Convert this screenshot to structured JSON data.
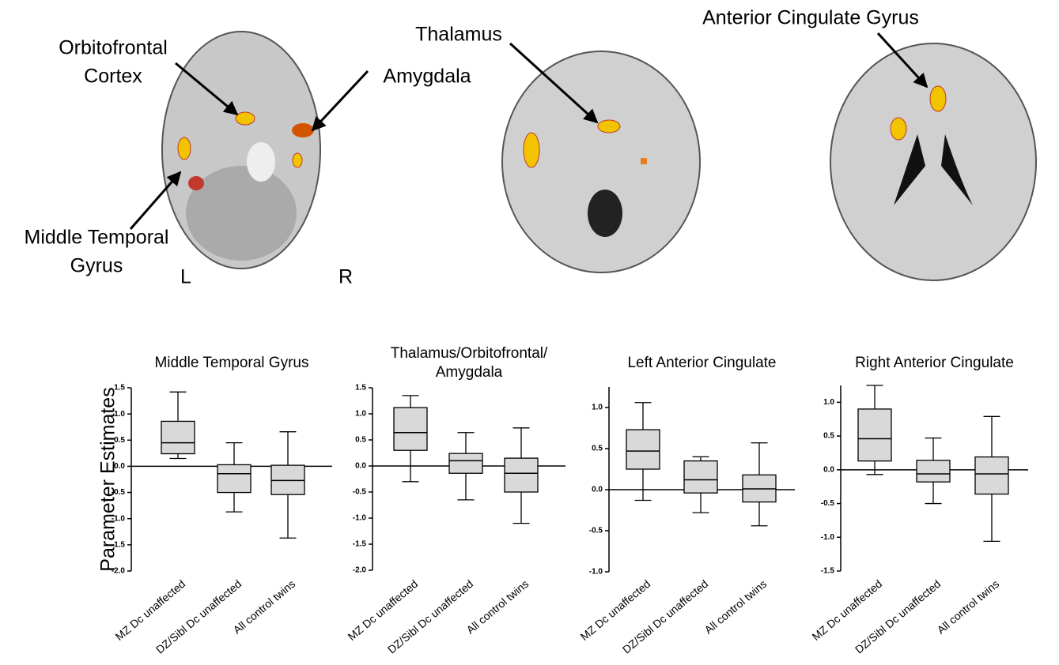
{
  "images": [
    {
      "labels": [
        "Orbitofrontal",
        "Cortex",
        "Amygdala",
        "Middle Temporal",
        "Gyrus",
        "L",
        "R"
      ]
    },
    {
      "labels": [
        "Thalamus"
      ]
    },
    {
      "labels": [
        "Anterior Cingulate Gyrus"
      ]
    }
  ],
  "chart_data": [
    {
      "type": "box",
      "title": [
        "Middle Temporal Gyrus"
      ],
      "ylabel": "Parameter Estimates",
      "categories": [
        "MZ Dc unaffected",
        "DZ/Sibl Dc unaffected",
        "All control twins"
      ],
      "boxes": [
        {
          "min": 0.15,
          "q1": 0.24,
          "median": 0.45,
          "q3": 0.86,
          "max": 1.42
        },
        {
          "min": -0.87,
          "q1": -0.5,
          "median": -0.14,
          "q3": 0.03,
          "max": 0.45
        },
        {
          "min": -1.37,
          "q1": -0.54,
          "median": -0.27,
          "q3": 0.02,
          "max": 0.66
        }
      ],
      "color": "#d9d9d9",
      "ylim": [
        -2,
        1.5
      ],
      "yticks": [
        1.5,
        {
          "value": 1,
          "label": "1.0"
        },
        0.5,
        {
          "value": 0,
          "label": "0.0"
        },
        -0.5,
        {
          "value": -1,
          "label": "-1.0"
        },
        -1.5,
        {
          "value": -2,
          "label": "-2.0"
        }
      ]
    },
    {
      "type": "box",
      "title": [
        "Thalamus/Orbitofrontal/",
        "Amygdala"
      ],
      "categories": [
        "MZ Dc unaffected",
        "DZ/Sibl Dc unaffected",
        "All control twins"
      ],
      "boxes": [
        {
          "min": -0.3,
          "q1": 0.3,
          "median": 0.64,
          "q3": 1.12,
          "max": 1.35
        },
        {
          "min": -0.65,
          "q1": -0.14,
          "median": 0.1,
          "q3": 0.24,
          "max": 0.64
        },
        {
          "min": -1.1,
          "q1": -0.5,
          "median": -0.14,
          "q3": 0.15,
          "max": 0.73
        }
      ],
      "color": "#d9d9d9",
      "ylim": [
        -2,
        1.5
      ],
      "yticks": [
        1.5,
        {
          "value": 1,
          "label": "1.0"
        },
        0.5,
        {
          "value": 0,
          "label": "0.0"
        },
        -0.5,
        {
          "value": -1,
          "label": "-1.0"
        },
        -1.5,
        {
          "value": -2,
          "label": "-2.0"
        }
      ]
    },
    {
      "type": "box",
      "title": [
        "Left Anterior Cingulate"
      ],
      "categories": [
        "MZ Dc unaffected",
        "DZ/Sibl Dc unaffected",
        "All control twins"
      ],
      "boxes": [
        {
          "min": -0.13,
          "q1": 0.25,
          "median": 0.47,
          "q3": 0.73,
          "max": 1.06
        },
        {
          "min": -0.28,
          "q1": -0.04,
          "median": 0.12,
          "q3": 0.35,
          "max": 0.4
        },
        {
          "min": -0.44,
          "q1": -0.15,
          "median": 0.01,
          "q3": 0.18,
          "max": 0.57
        }
      ],
      "color": "#d9d9d9",
      "ylim": [
        -1,
        1.25
      ],
      "yticks": [
        {
          "value": 1,
          "label": "1.0"
        },
        0.5,
        {
          "value": 0,
          "label": "0.0"
        },
        -0.5,
        {
          "value": -1,
          "label": "-1.0"
        }
      ]
    },
    {
      "type": "box",
      "title": [
        "Right Anterior Cingulate"
      ],
      "categories": [
        "MZ Dc unaffected",
        "DZ/Sibl Dc unaffected",
        "All control twins"
      ],
      "boxes": [
        {
          "min": -0.07,
          "q1": 0.13,
          "median": 0.46,
          "q3": 0.9,
          "max": 1.25
        },
        {
          "min": -0.5,
          "q1": -0.18,
          "median": -0.06,
          "q3": 0.14,
          "max": 0.47
        },
        {
          "min": -1.06,
          "q1": -0.36,
          "median": -0.06,
          "q3": 0.19,
          "max": 0.79
        }
      ],
      "color": "#d9d9d9",
      "ylim": [
        -1.5,
        1.25
      ],
      "yticks": [
        {
          "value": 1,
          "label": "1.0"
        },
        0.5,
        {
          "value": 0,
          "label": "0.0"
        },
        -0.5,
        {
          "value": -1,
          "label": "-1.0"
        },
        -1.5
      ]
    }
  ]
}
